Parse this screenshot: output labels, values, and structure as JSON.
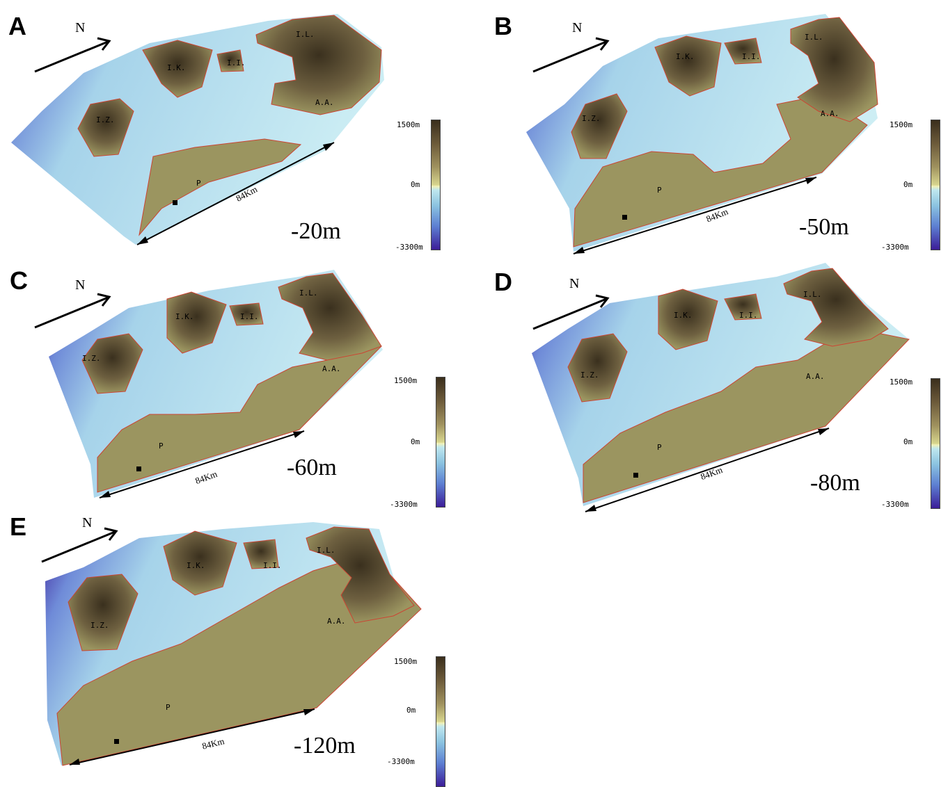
{
  "north_label": "N",
  "scale_label": "84Km",
  "colorbar": {
    "max_label": "1500m",
    "zero_label": "0m",
    "min_label": "-3300m"
  },
  "colors": {
    "deep_sea": "#3c1d98",
    "shallow_sea": "#c5e8f1",
    "land": "#9b9560",
    "mountain": "#3f3522",
    "coastline": "#cc4433"
  },
  "site_labels": {
    "iz": "I.Z.",
    "ik": "I.K.",
    "ii": "I.I.",
    "il": "I.L.",
    "aa": "A.A.",
    "p": "P"
  },
  "panels": [
    {
      "letter": "A",
      "sea_level": "-20m"
    },
    {
      "letter": "B",
      "sea_level": "-50m"
    },
    {
      "letter": "C",
      "sea_level": "-60m"
    },
    {
      "letter": "D",
      "sea_level": "-80m"
    },
    {
      "letter": "E",
      "sea_level": "-120m"
    }
  ]
}
